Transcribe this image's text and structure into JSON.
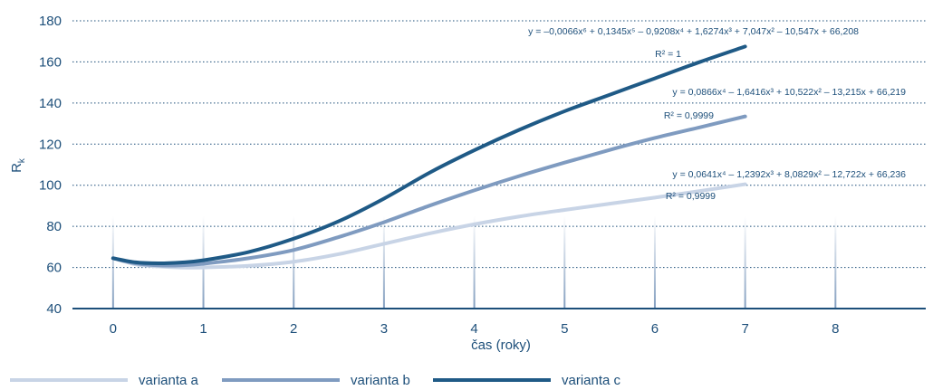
{
  "chart_data": {
    "type": "line",
    "xlabel": "čas (roky)",
    "ylabel": "Rk",
    "ylabel_main": "R",
    "ylabel_sub": "k",
    "xlim": [
      -0.45,
      9.0
    ],
    "ylim": [
      40,
      180
    ],
    "xticks": [
      "0",
      "1",
      "2",
      "3",
      "4",
      "5",
      "6",
      "7",
      "8"
    ],
    "yticks": [
      "40",
      "60",
      "80",
      "100",
      "120",
      "140",
      "160",
      "180"
    ],
    "grid": "horizontal dotted",
    "legend_position": "bottom-left",
    "colors": {
      "axis": "#1d4f7a",
      "grid": "#1d4f7a",
      "vertical_band": "#6d8db4"
    },
    "x": [
      0,
      0.25,
      0.5,
      0.75,
      1,
      1.5,
      2,
      2.5,
      3,
      3.5,
      4,
      4.5,
      5,
      5.5,
      6,
      6.5,
      7
    ],
    "series": [
      {
        "name": "varianta a",
        "color": "#c8d4e6",
        "values": [
          64.5,
          61.5,
          60.5,
          60.0,
          60.0,
          60.8,
          62.8,
          66.5,
          71.5,
          76.5,
          81.0,
          84.8,
          88.0,
          91.0,
          94.0,
          97.2,
          100.5
        ]
      },
      {
        "name": "varianta b",
        "color": "#7f9bc0",
        "values": [
          64.5,
          62.0,
          61.0,
          61.0,
          61.8,
          64.5,
          68.5,
          74.8,
          82.0,
          90.0,
          97.5,
          104.5,
          111.0,
          117.2,
          123.0,
          128.2,
          133.5
        ]
      },
      {
        "name": "varianta c",
        "color": "#1f5a86",
        "values": [
          64.5,
          62.5,
          62.0,
          62.4,
          63.5,
          67.5,
          74.0,
          82.5,
          93.5,
          106.0,
          117.0,
          127.0,
          136.0,
          144.0,
          152.0,
          160.0,
          167.5
        ]
      }
    ],
    "annotations": [
      {
        "text": "y = –0,0066x⁶ + 0,1345x⁵ – 0,9208x⁴ + 1,6274x³ + 7,047x² – 10,547x + 66,208",
        "series": "varianta c"
      },
      {
        "text": "R² = 1",
        "series": "varianta c"
      },
      {
        "text": "y = 0,0866x⁴ – 1,6416x³ + 10,522x² – 13,215x + 66,219",
        "series": "varianta b"
      },
      {
        "text": "R² = 0,9999",
        "series": "varianta b"
      },
      {
        "text": "y = 0,0641x⁴ – 1,2392x³ + 8,0829x² – 12,722x + 66,236",
        "series": "varianta a"
      },
      {
        "text": "R² = 0,9999",
        "series": "varianta a"
      }
    ]
  }
}
